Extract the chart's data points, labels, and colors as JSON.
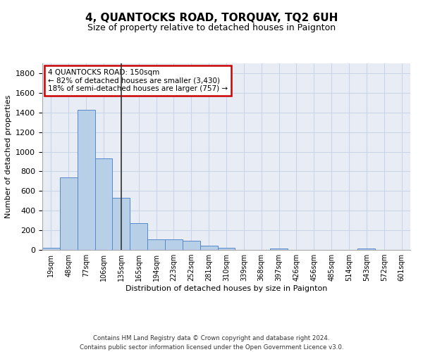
{
  "title": "4, QUANTOCKS ROAD, TORQUAY, TQ2 6UH",
  "subtitle": "Size of property relative to detached houses in Paignton",
  "xlabel": "Distribution of detached houses by size in Paignton",
  "ylabel": "Number of detached properties",
  "bar_labels": [
    "19sqm",
    "48sqm",
    "77sqm",
    "106sqm",
    "135sqm",
    "165sqm",
    "194sqm",
    "223sqm",
    "252sqm",
    "281sqm",
    "310sqm",
    "339sqm",
    "368sqm",
    "397sqm",
    "426sqm",
    "456sqm",
    "485sqm",
    "514sqm",
    "543sqm",
    "572sqm",
    "601sqm"
  ],
  "bar_values": [
    25,
    740,
    1430,
    935,
    530,
    270,
    110,
    110,
    95,
    45,
    25,
    0,
    0,
    15,
    0,
    0,
    0,
    0,
    15,
    0,
    0
  ],
  "bar_color": "#b8cfe8",
  "bar_edge_color": "#5588cc",
  "annotation_title": "4 QUANTOCKS ROAD: 150sqm",
  "annotation_line1": "← 82% of detached houses are smaller (3,430)",
  "annotation_line2": "18% of semi-detached houses are larger (757) →",
  "annotation_box_color": "#ffffff",
  "annotation_box_edge": "#cc0000",
  "vline_color": "#333333",
  "vline_x_index": 4.5,
  "ylim": [
    0,
    1900
  ],
  "yticks": [
    0,
    200,
    400,
    600,
    800,
    1000,
    1200,
    1400,
    1600,
    1800
  ],
  "grid_color": "#c8d4e8",
  "bg_color": "#e8edf5",
  "footer_line1": "Contains HM Land Registry data © Crown copyright and database right 2024.",
  "footer_line2": "Contains public sector information licensed under the Open Government Licence v3.0."
}
